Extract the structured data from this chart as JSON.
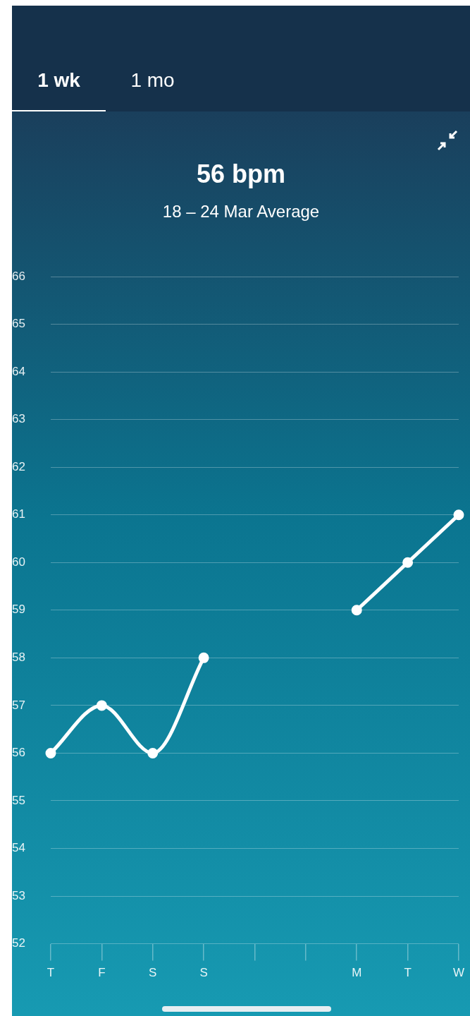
{
  "chart_data": {
    "type": "line",
    "title": "56 bpm",
    "subtitle": "18 – 24 Mar Average",
    "annotations": [
      "1 wk",
      "1 mo"
    ],
    "categories": [
      "T",
      "F",
      "S",
      "S",
      null,
      null,
      "M",
      "T",
      "W"
    ],
    "series": [
      {
        "color": "#ffffff",
        "values": [
          56,
          57,
          56,
          58,
          null,
          null,
          59,
          60,
          61
        ]
      }
    ],
    "ylim": [
      52,
      66
    ],
    "yticks": [
      52,
      53,
      54,
      55,
      56,
      57,
      58,
      59,
      60,
      61,
      62,
      63,
      64,
      65,
      66
    ],
    "grid": "y",
    "marker": "circle",
    "line_style": "solid"
  }
}
